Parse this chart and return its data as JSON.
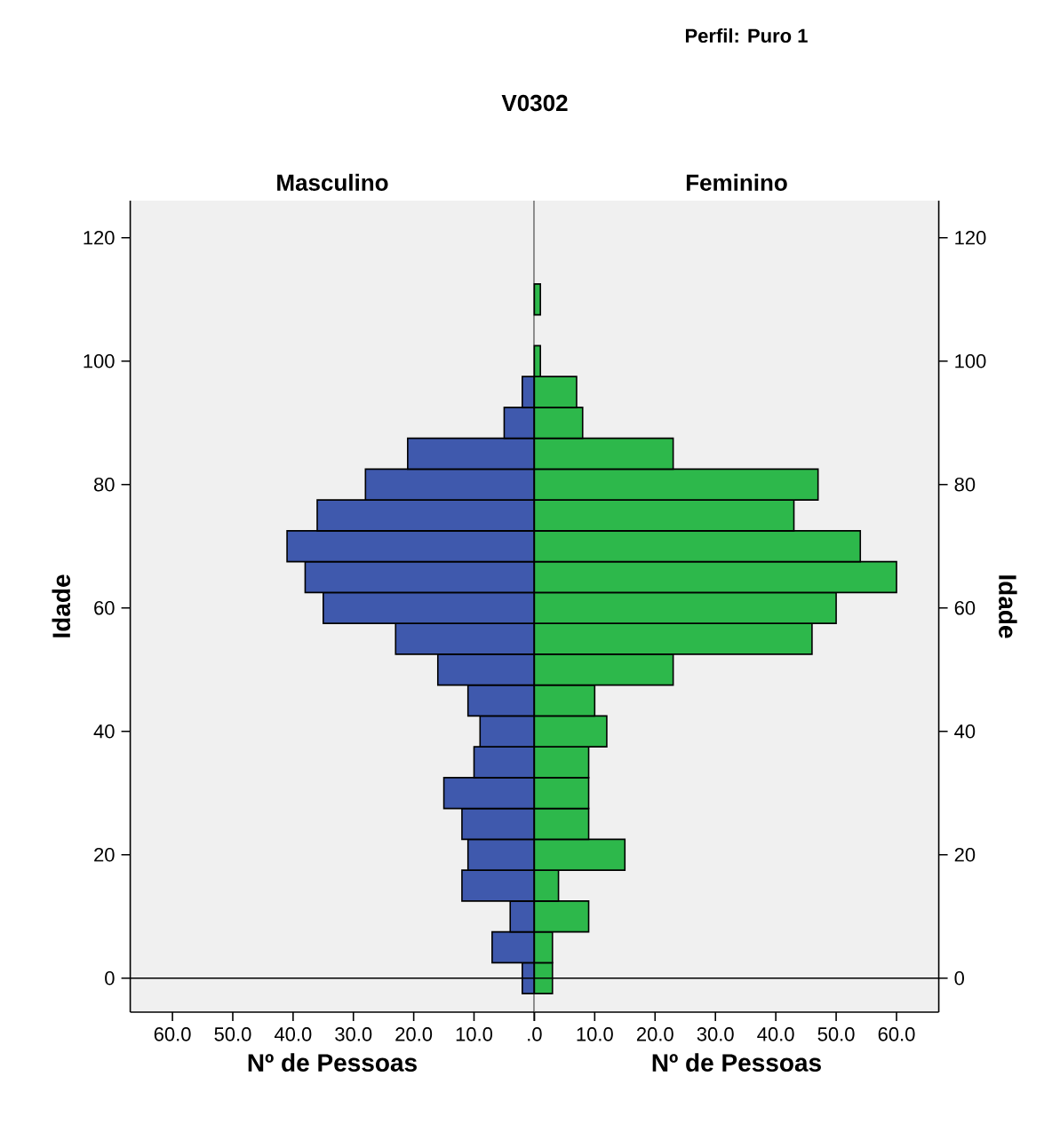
{
  "chart_data": [
    {
      "type": "bar",
      "orientation": "horizontal",
      "title": "V0302",
      "xlabel": "Nº de Pessoas",
      "ylabel": "Idade",
      "x": [
        0,
        5,
        10,
        15,
        20,
        25,
        30,
        35,
        40,
        45,
        50,
        55,
        60,
        65,
        70,
        75,
        80,
        85,
        90,
        95
      ],
      "series": [
        {
          "name": "Masculino",
          "color": "#3f59ad",
          "values": [
            2,
            7,
            4,
            12,
            11,
            12,
            15,
            10,
            9,
            11,
            16,
            23,
            35,
            38,
            41,
            36,
            28,
            21,
            5,
            2
          ]
        }
      ],
      "xlim": [
        67,
        0
      ],
      "ylim": [
        -5.5,
        126
      ],
      "xticks": [
        {
          "value": 60,
          "label": "60.0"
        },
        {
          "value": 50,
          "label": "50.0"
        },
        {
          "value": 40,
          "label": "40.0"
        },
        {
          "value": 30,
          "label": "30.0"
        },
        {
          "value": 20,
          "label": "20.0"
        },
        {
          "value": 10,
          "label": "10.0"
        },
        {
          "value": 0,
          "label": ".0"
        }
      ],
      "yticks": [
        0,
        20,
        40,
        60,
        80,
        100,
        120
      ],
      "ref_lines": [
        {
          "axis": "y",
          "value": 0
        }
      ]
    },
    {
      "type": "bar",
      "orientation": "horizontal",
      "subtitle": "Perfil: Puro 1",
      "xlabel": "Nº de Pessoas",
      "ylabel": "Idade",
      "x": [
        0,
        5,
        10,
        15,
        20,
        25,
        30,
        35,
        40,
        45,
        50,
        55,
        60,
        65,
        70,
        75,
        80,
        85,
        90,
        95,
        100,
        105,
        110
      ],
      "series": [
        {
          "name": "Feminino",
          "color": "#2db84b",
          "values": [
            3,
            3,
            9,
            4,
            15,
            9,
            9,
            9,
            12,
            10,
            23,
            46,
            50,
            60,
            54,
            43,
            47,
            23,
            8,
            7,
            1,
            null,
            1
          ]
        }
      ],
      "xlim": [
        0,
        67
      ],
      "ylim": [
        -5.5,
        126
      ],
      "xticks": [
        {
          "value": 0,
          "label": null
        },
        {
          "value": 10,
          "label": "10.0"
        },
        {
          "value": 20,
          "label": "20.0"
        },
        {
          "value": 30,
          "label": "30.0"
        },
        {
          "value": 40,
          "label": "40.0"
        },
        {
          "value": 50,
          "label": "50.0"
        },
        {
          "value": 60,
          "label": "60.0"
        }
      ],
      "yticks": [
        0,
        20,
        40,
        60,
        80,
        100,
        120
      ],
      "ref_lines": [
        {
          "axis": "y",
          "value": 0
        }
      ]
    }
  ]
}
